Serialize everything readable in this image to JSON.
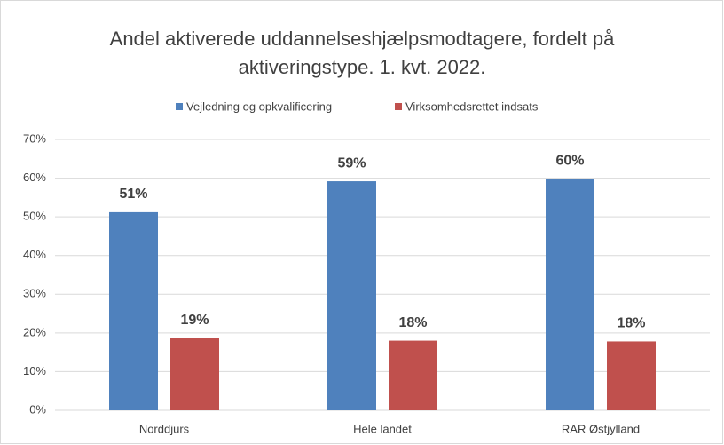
{
  "chart_data": {
    "type": "bar",
    "title": "Andel aktiverede uddannelseshjælpsmodtagere, fordelt på aktiveringstype. 1. kvt. 2022.",
    "categories": [
      "Norddjurs",
      "Hele landet",
      "RAR Østjylland"
    ],
    "series": [
      {
        "name": "Vejledning og opkvalificering",
        "color": "#4f81bd",
        "values": [
          51.2,
          59.2,
          59.8
        ],
        "value_labels": [
          "51%",
          "59%",
          "60%"
        ]
      },
      {
        "name": "Virksomhedsrettet indsats",
        "color": "#c0504d",
        "values": [
          18.6,
          18.0,
          17.8
        ],
        "value_labels": [
          "19%",
          "18%",
          "18%"
        ]
      }
    ],
    "ylim": [
      0,
      70
    ],
    "yticks": [
      {
        "value": 0,
        "label": "0%"
      },
      {
        "value": 10,
        "label": "10%"
      },
      {
        "value": 20,
        "label": "20%"
      },
      {
        "value": 30,
        "label": "30%"
      },
      {
        "value": 40,
        "label": "40%"
      },
      {
        "value": 50,
        "label": "50%"
      },
      {
        "value": 60,
        "label": "60%"
      },
      {
        "value": 70,
        "label": "70%"
      }
    ],
    "grid": true,
    "legend": "top"
  }
}
